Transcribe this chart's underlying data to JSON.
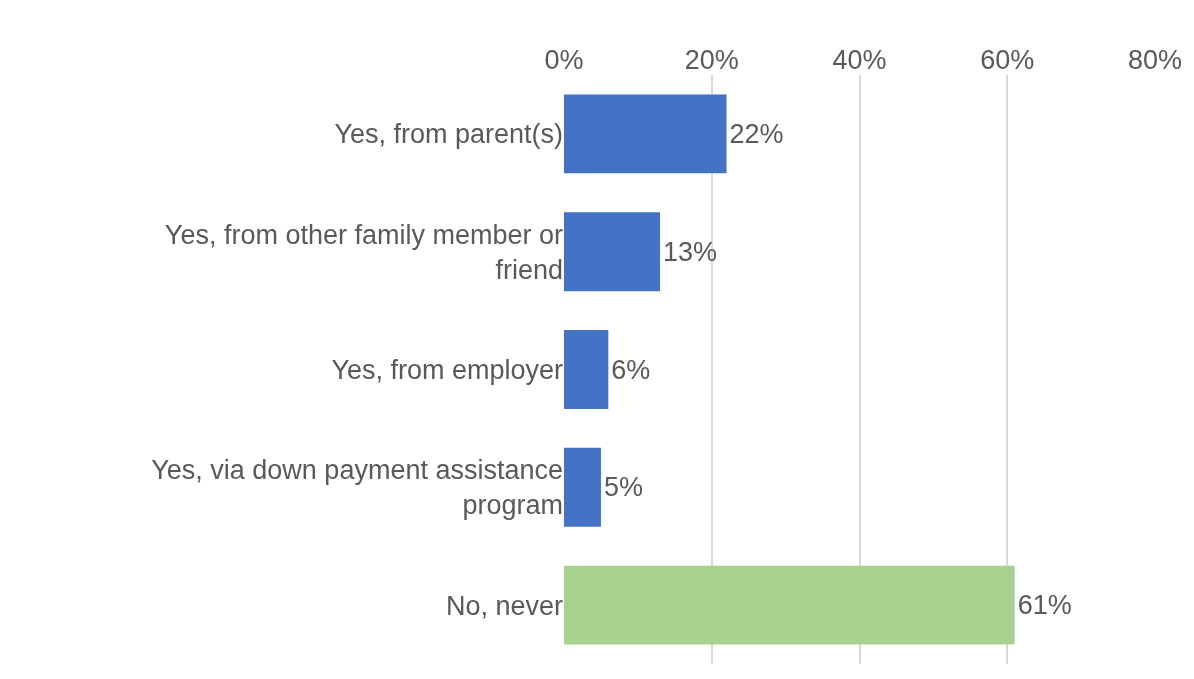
{
  "chart_data": {
    "type": "bar",
    "orientation": "horizontal",
    "categories": [
      "Yes, from parent(s)",
      "Yes, from other family member or friend",
      "Yes, from employer",
      "Yes, via down payment assistance program",
      "No, never"
    ],
    "values": [
      22,
      13,
      6,
      5,
      61
    ],
    "colors": [
      "#4472c4",
      "#4472c4",
      "#4472c4",
      "#4472c4",
      "#a9d18e"
    ],
    "value_labels": [
      "22%",
      "13%",
      "6%",
      "5%",
      "61%"
    ],
    "xlim": [
      0,
      80
    ],
    "xticks": [
      {
        "value": 0,
        "label": "0%"
      },
      {
        "value": 20,
        "label": "20%"
      },
      {
        "value": 40,
        "label": "40%"
      },
      {
        "value": 60,
        "label": "60%"
      },
      {
        "value": 80,
        "label": "80%"
      }
    ],
    "grid": "x"
  }
}
